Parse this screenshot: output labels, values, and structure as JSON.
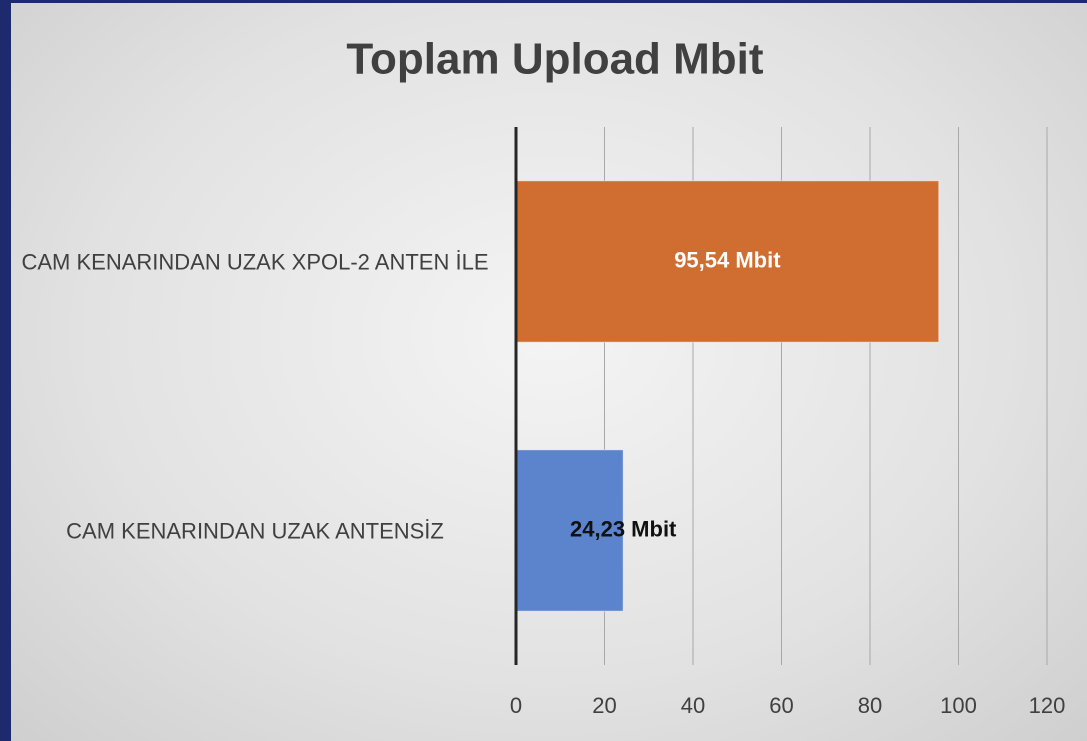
{
  "chart_data": {
    "type": "barh",
    "title": "Toplam Upload  Mbit",
    "categories": [
      "CAM KENARINDAN  UZAK XPOL-2 ANTEN İLE",
      "CAM KENARINDAN UZAK ANTENSİZ"
    ],
    "values": [
      95.54,
      24.23
    ],
    "value_labels": [
      "95,54 Mbit",
      "24,23 Mbit"
    ],
    "colors": [
      "#d06d30",
      "#5b84cc"
    ],
    "xlim": [
      0,
      120
    ],
    "xticks": [
      0,
      20,
      40,
      60,
      80,
      100,
      120
    ],
    "grid": true
  }
}
